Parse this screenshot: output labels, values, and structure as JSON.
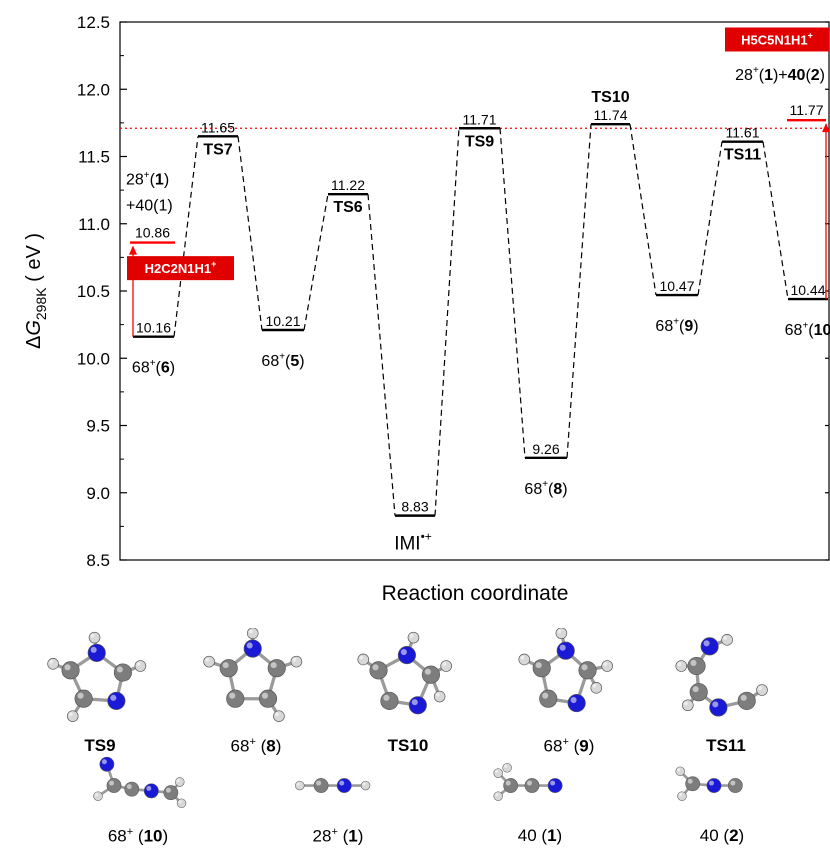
{
  "chart_data": {
    "type": "energy-profile",
    "ylabel": "ΔG298K ( eV )",
    "ylabel_parts": {
      "delta": "Δ",
      "symbol": "G",
      "subscript": "298K",
      "unit": "( eV )"
    },
    "xlabel": "Reaction coordinate",
    "ylim": [
      8.5,
      12.5
    ],
    "yticks": [
      "8.5",
      "9.0",
      "9.5",
      "10.0",
      "10.5",
      "11.0",
      "11.5",
      "12.0",
      "12.5"
    ],
    "reference_line": {
      "value": 11.71,
      "color": "#ff0000",
      "style": "dotted"
    },
    "levels": [
      {
        "id": "i6",
        "value": 10.16,
        "value_label": "10.16",
        "label": "68+(6)",
        "label_pos": "below"
      },
      {
        "id": "ts7",
        "value": 11.65,
        "value_label": "11.65",
        "label": "TS7",
        "label_pos": "below",
        "bold": true
      },
      {
        "id": "i5",
        "value": 10.21,
        "value_label": "10.21",
        "label": "68+(5)",
        "label_pos": "below"
      },
      {
        "id": "ts6",
        "value": 11.22,
        "value_label": "11.22",
        "label": "TS6",
        "label_pos": "below",
        "bold": true
      },
      {
        "id": "imi",
        "value": 8.83,
        "value_label": "8.83",
        "label": "IMI•+",
        "label_pos": "below"
      },
      {
        "id": "ts9",
        "value": 11.71,
        "value_label": "11.71",
        "label": "TS9",
        "label_pos": "below",
        "bold": true
      },
      {
        "id": "i8",
        "value": 9.26,
        "value_label": "9.26",
        "label": "68+(8)",
        "label_pos": "below"
      },
      {
        "id": "ts10",
        "value": 11.74,
        "value_label": "11.74",
        "label": "TS10",
        "label_pos": "above",
        "bold": true
      },
      {
        "id": "i9",
        "value": 10.47,
        "value_label": "10.47",
        "label": "68+(9)",
        "label_pos": "below"
      },
      {
        "id": "ts11",
        "value": 11.61,
        "value_label": "11.61",
        "label": "TS11",
        "label_pos": "below",
        "bold": true
      },
      {
        "id": "i10",
        "value": 10.44,
        "value_label": "10.44",
        "label": "68+(10",
        "label_pos": "below"
      }
    ],
    "dissociations": [
      {
        "from": "i6",
        "value": 10.86,
        "value_label": "10.86",
        "products": [
          "28+(1)",
          "+40(1)"
        ],
        "tag": "H2C2N1H1+"
      },
      {
        "from": "i10",
        "value": 11.77,
        "value_label": "11.77",
        "products": [
          "28+(1)+40(2)"
        ],
        "tag": "H5C5N1H1+"
      }
    ]
  },
  "structures": {
    "row1": [
      {
        "id": "ts9",
        "label": "TS9",
        "bold": true
      },
      {
        "id": "i8",
        "label": "68+ (8)",
        "bold": false
      },
      {
        "id": "ts10",
        "label": "TS10",
        "bold": true
      },
      {
        "id": "i9",
        "label": "68+ (9)",
        "bold": false
      },
      {
        "id": "ts11",
        "label": "TS11",
        "bold": true
      }
    ],
    "row2": [
      {
        "id": "i10",
        "label": "68+ (10)",
        "bold": false
      },
      {
        "id": "p28",
        "label": "28+ (1)",
        "bold": false
      },
      {
        "id": "p40a",
        "label": "40 (1)",
        "bold": false
      },
      {
        "id": "p40b",
        "label": "40 (2)",
        "bold": false
      }
    ]
  },
  "colors": {
    "accent": "#ff0000",
    "tag_bg": "#e00000",
    "atom_c": "#7d7d7d",
    "atom_n": "#1a1ad6",
    "atom_h": "#d8d8d8"
  }
}
